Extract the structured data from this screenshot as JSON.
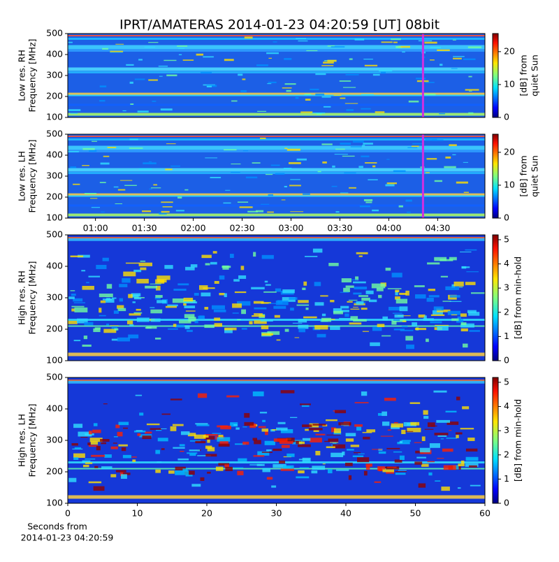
{
  "title": "IPRT/AMATERAS 2014-01-23 04:20:59 [UT]   08bit",
  "chart_data": [
    {
      "type": "spectrogram",
      "ylabel": [
        "Low res. RH",
        "Frequency [MHz]"
      ],
      "xlim": [
        43,
        299
      ],
      "ylim": [
        100,
        500
      ],
      "yticks": [
        100,
        200,
        300,
        400,
        500
      ],
      "clabel": [
        "[dB] from",
        "quiet Sun"
      ],
      "clim": [
        0,
        25.5
      ],
      "cticks": [
        0,
        10,
        20
      ],
      "marker": 261,
      "marker_color": "#d030e0"
    },
    {
      "type": "spectrogram",
      "ylabel": [
        "Low res. LH",
        "Frequency [MHz]"
      ],
      "xlim": [
        43,
        299
      ],
      "ylim": [
        100,
        500
      ],
      "yticks": [
        100,
        200,
        300,
        400,
        500
      ],
      "xticks": [
        {
          "value": 60,
          "label": "01:00"
        },
        {
          "value": 90,
          "label": "01:30"
        },
        {
          "value": 120,
          "label": "02:00"
        },
        {
          "value": 150,
          "label": "02:30"
        },
        {
          "value": 180,
          "label": "03:00"
        },
        {
          "value": 210,
          "label": "03:30"
        },
        {
          "value": 240,
          "label": "04:00"
        },
        {
          "value": 270,
          "label": "04:30"
        }
      ],
      "clabel": [
        "[dB] from",
        "quiet Sun"
      ],
      "clim": [
        0,
        25.5
      ],
      "cticks": [
        0,
        10,
        20
      ],
      "marker": 261,
      "marker_color": "#d030e0"
    },
    {
      "type": "spectrogram",
      "ylabel": [
        "High res. RH",
        "Frequency [MHz]"
      ],
      "xlim": [
        0,
        60
      ],
      "ylim": [
        100,
        500
      ],
      "yticks": [
        100,
        200,
        300,
        400,
        500
      ],
      "clabel": [
        "[dB] from min-hold"
      ],
      "clim": [
        0,
        5.2
      ],
      "cticks": [
        0,
        1,
        2,
        3,
        4,
        5
      ]
    },
    {
      "type": "spectrogram",
      "ylabel": [
        "High res. LH",
        "Frequency [MHz]"
      ],
      "xlim": [
        0,
        60
      ],
      "ylim": [
        100,
        500
      ],
      "yticks": [
        100,
        200,
        300,
        400,
        500
      ],
      "xticks": [
        0,
        10,
        20,
        30,
        40,
        50,
        60
      ],
      "xlabel": [
        "Seconds from",
        "2014-01-23 04:20:59"
      ],
      "clabel": [
        "[dB] from min-hold"
      ],
      "clim": [
        0,
        5.2
      ],
      "cticks": [
        0,
        1,
        2,
        3,
        4,
        5
      ]
    }
  ]
}
